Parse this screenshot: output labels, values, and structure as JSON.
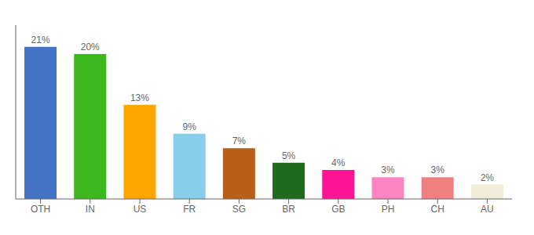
{
  "chart_data": {
    "type": "bar",
    "categories": [
      "OTH",
      "IN",
      "US",
      "FR",
      "SG",
      "BR",
      "GB",
      "PH",
      "CH",
      "AU"
    ],
    "values": [
      21,
      20,
      13,
      9,
      7,
      5,
      4,
      3,
      3,
      2
    ],
    "value_labels": [
      "21%",
      "20%",
      "13%",
      "9%",
      "7%",
      "5%",
      "4%",
      "3%",
      "3%",
      "2%"
    ],
    "data_labels": true,
    "colors": [
      "#4472C4",
      "#3CB81E",
      "#FFA500",
      "#87CEEB",
      "#B8601A",
      "#1E6B1E",
      "#FF1493",
      "#FF85C0",
      "#F08080",
      "#F0EDD8"
    ],
    "ylim": [
      0,
      24
    ],
    "yticks": [],
    "tick_labels": "x",
    "grid": false
  }
}
